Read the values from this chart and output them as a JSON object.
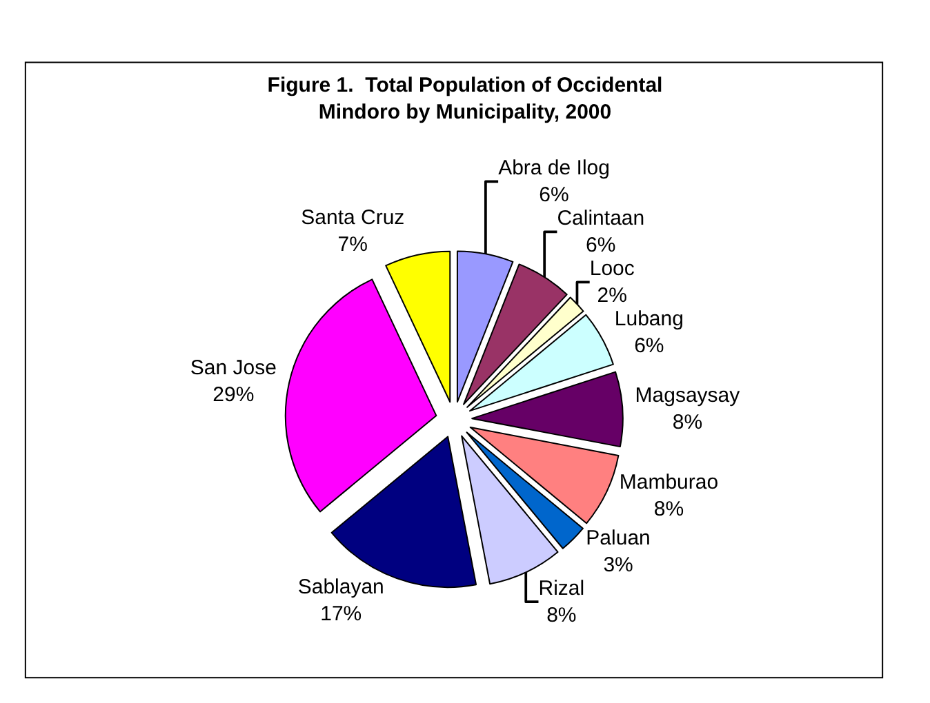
{
  "chart_data": {
    "type": "pie",
    "title": "Figure 1.  Total Population of Occidental\nMindoro by Municipality, 2000",
    "categories": [
      "Abra de Ilog",
      "Calintaan",
      "Looc",
      "Lubang",
      "Magsaysay",
      "Mamburao",
      "Paluan",
      "Rizal",
      "Sablayan",
      "San Jose",
      "Santa Cruz"
    ],
    "values": [
      6,
      6,
      2,
      6,
      8,
      8,
      3,
      8,
      17,
      29,
      7
    ],
    "value_labels": [
      "6%",
      "6%",
      "2%",
      "6%",
      "8%",
      "8%",
      "3%",
      "8%",
      "17%",
      "29%",
      "7%"
    ],
    "colors": [
      "#9999ff",
      "#993366",
      "#ffffcc",
      "#ccffff",
      "#660066",
      "#ff8080",
      "#0066cc",
      "#ccccff",
      "#000080",
      "#ff00ff",
      "#ffff00"
    ],
    "legend": false
  }
}
